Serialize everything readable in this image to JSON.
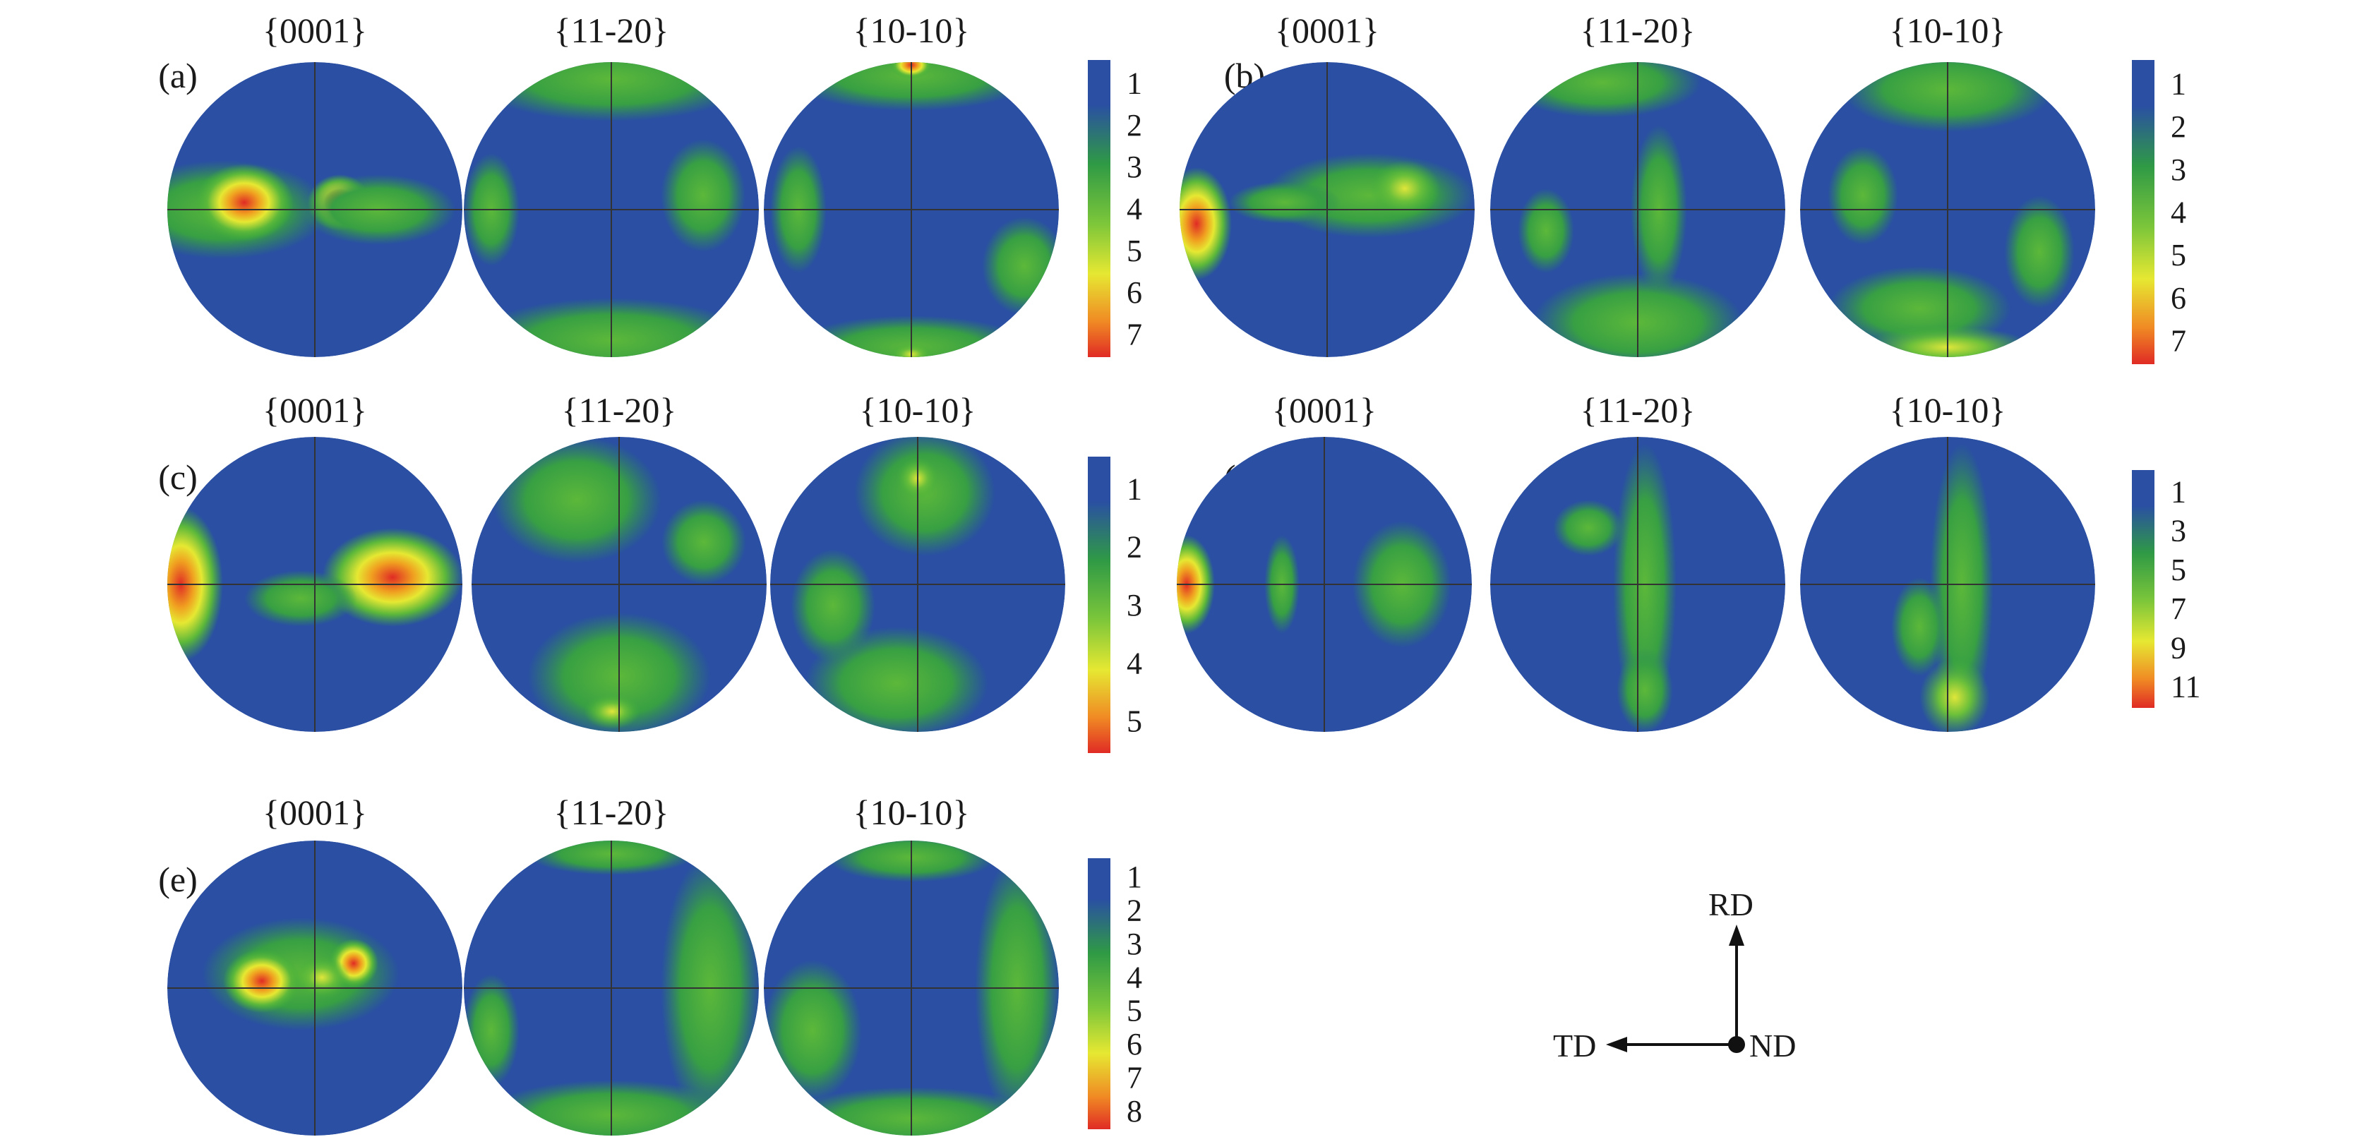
{
  "panels": [
    {
      "label": "(a)",
      "titles": [
        "{0001}",
        "{11-20}",
        "{10-10}"
      ],
      "colorbar_ticks": [
        "1",
        "2",
        "3",
        "4",
        "5",
        "6",
        "7"
      ]
    },
    {
      "label": "(b)",
      "titles": [
        "{0001}",
        "{11-20}",
        "{10-10}"
      ],
      "colorbar_ticks": [
        "1",
        "2",
        "3",
        "4",
        "5",
        "6",
        "7"
      ]
    },
    {
      "label": "(c)",
      "titles": [
        "{0001}",
        "{11-20}",
        "{10-10}"
      ],
      "colorbar_ticks": [
        "1",
        "2",
        "3",
        "4",
        "5"
      ]
    },
    {
      "label": "(d)",
      "titles": [
        "{0001}",
        "{11-20}",
        "{10-10}"
      ],
      "colorbar_ticks": [
        "1",
        "3",
        "5",
        "7",
        "9",
        "11"
      ]
    },
    {
      "label": "(e)",
      "titles": [
        "{0001}",
        "{11-20}",
        "{10-10}"
      ],
      "colorbar_ticks": [
        "1",
        "2",
        "3",
        "4",
        "5",
        "6",
        "7",
        "8"
      ]
    }
  ],
  "axes": {
    "rd": "RD",
    "td": "TD",
    "nd": "ND"
  },
  "colors": {
    "low": "#2a4fa3",
    "mid": "#3fae3a",
    "high_mid": "#e6e832",
    "high": "#e02b25"
  }
}
